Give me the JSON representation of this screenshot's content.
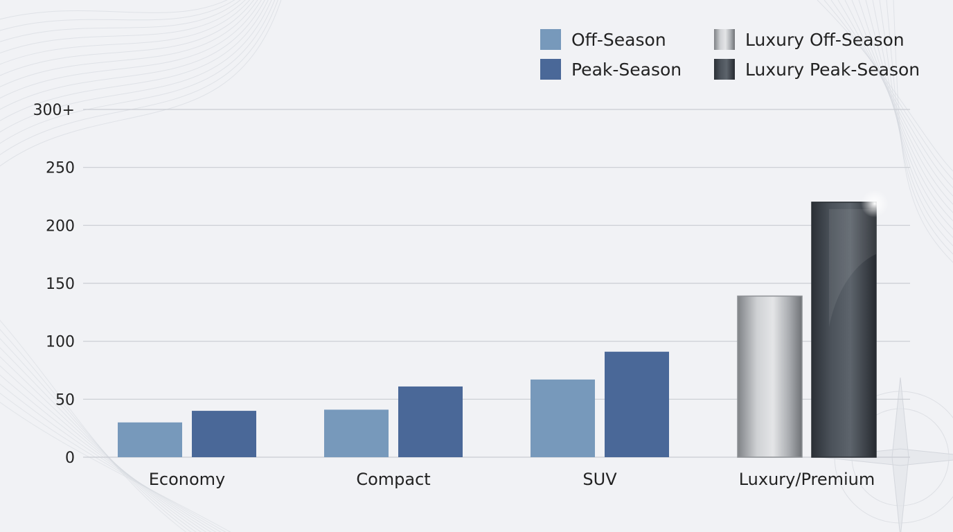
{
  "chart_data": {
    "type": "bar",
    "categories": [
      "Economy",
      "Compact",
      "SUV",
      "Luxury/Premium"
    ],
    "series": [
      {
        "name": "Off-Season",
        "values": [
          30,
          41,
          67,
          null
        ],
        "color": "#7799bb"
      },
      {
        "name": "Peak-Season",
        "values": [
          40,
          61,
          91,
          null
        ],
        "color": "#4a6898"
      },
      {
        "name": "Luxury Off-Season",
        "values": [
          null,
          null,
          null,
          139
        ],
        "color": "#b4b6b9"
      },
      {
        "name": "Luxury Peak-Season",
        "values": [
          null,
          null,
          null,
          220
        ],
        "color": "#3f464e"
      }
    ],
    "y_ticks": [
      "0",
      "50",
      "100",
      "150",
      "200",
      "250",
      "300+"
    ],
    "ylim": [
      0,
      300
    ],
    "grid": true,
    "legend_position": "top-right"
  }
}
